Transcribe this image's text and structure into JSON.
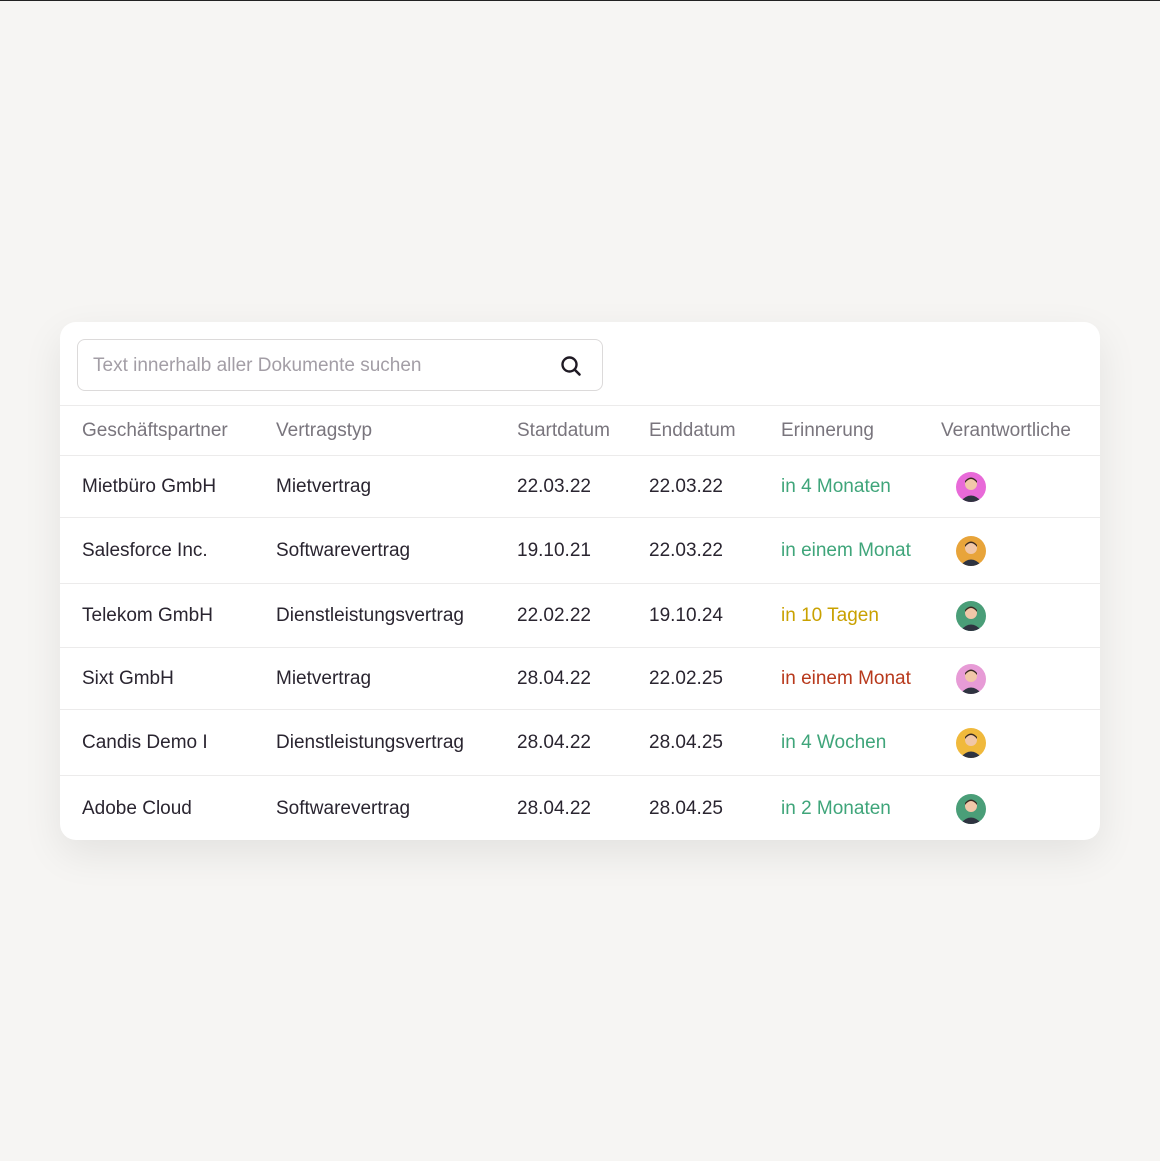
{
  "search": {
    "placeholder": "Text innerhalb aller Dokumente suchen"
  },
  "table": {
    "headers": [
      "Geschäftspartner",
      "Vertragstyp",
      "Startdatum",
      "Enddatum",
      "Erinnerung",
      "Verantwortliche"
    ],
    "rows": [
      {
        "partner": "Mietbüro GmbH",
        "type": "Mietvertrag",
        "start": "22.03.22",
        "end": "22.03.22",
        "reminder": "in 4 Monaten",
        "reminder_color": "#3fa57a",
        "avatar_color": "#e86ad8"
      },
      {
        "partner": "Salesforce Inc.",
        "type": "Softwarevertrag",
        "start": "19.10.21",
        "end": "22.03.22",
        "reminder": "in einem Monat",
        "reminder_color": "#3fa57a",
        "avatar_color": "#e8a43a"
      },
      {
        "partner": "Telekom GmbH",
        "type": "Dienstleistungsvertrag",
        "start": "22.02.22",
        "end": "19.10.24",
        "reminder": "in 10 Tagen",
        "reminder_color": "#c9a100",
        "avatar_color": "#4a9e78"
      },
      {
        "partner": "Sixt GmbH",
        "type": "Mietvertrag",
        "start": "28.04.22",
        "end": "22.02.25",
        "reminder": "in einem Monat",
        "reminder_color": "#b8391c",
        "avatar_color": "#e79bd6"
      },
      {
        "partner": "Candis Demo I",
        "type": "Dienstleistungsvertrag",
        "start": "28.04.22",
        "end": "28.04.25",
        "reminder": "in 4 Wochen",
        "reminder_color": "#3fa57a",
        "avatar_color": "#f0b93c"
      },
      {
        "partner": "Adobe Cloud",
        "type": "Softwarevertrag",
        "start": "28.04.22",
        "end": "28.04.25",
        "reminder": "in 2 Monaten",
        "reminder_color": "#3fa57a",
        "avatar_color": "#4a9e78"
      }
    ]
  }
}
